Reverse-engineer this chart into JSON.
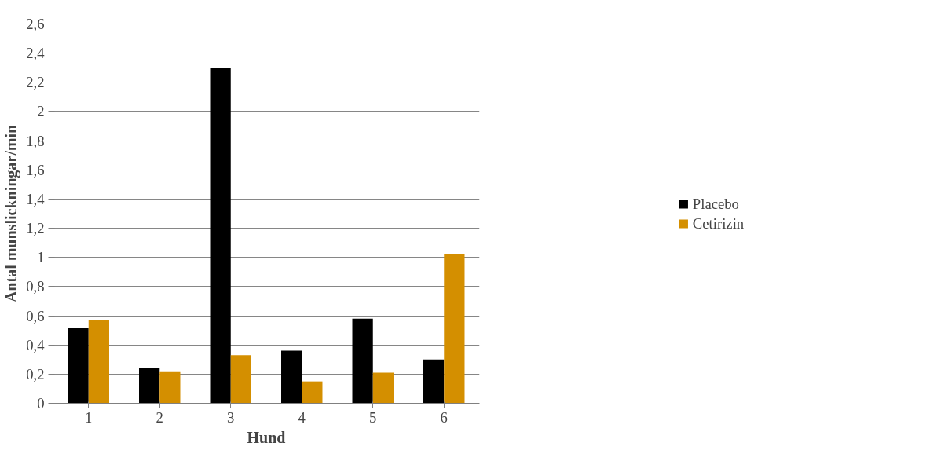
{
  "chart_data": {
    "type": "bar",
    "xlabel": "Hund",
    "ylabel": "Antal munslickningar/min",
    "categories": [
      "1",
      "2",
      "3",
      "4",
      "5",
      "6"
    ],
    "series": [
      {
        "name": "Placebo",
        "color": "#000000",
        "values": [
          0.52,
          0.24,
          2.3,
          0.36,
          0.58,
          0.3
        ]
      },
      {
        "name": "Cetirizin",
        "color": "#d48f00",
        "values": [
          0.57,
          0.22,
          0.33,
          0.15,
          0.21,
          1.02
        ]
      }
    ],
    "ylim": [
      0,
      2.6
    ],
    "yticks": [
      0,
      {
        "value": 0.2,
        "label": "0,2"
      },
      {
        "value": 0.4,
        "label": "0,4"
      },
      {
        "value": 0.6,
        "label": "0,6"
      },
      {
        "value": 0.8,
        "label": "0,8"
      },
      1,
      {
        "value": 1.2,
        "label": "1,2"
      },
      {
        "value": 1.4,
        "label": "1,4"
      },
      {
        "value": 1.6,
        "label": "1,6"
      },
      {
        "value": 1.8,
        "label": "1,8"
      },
      2,
      {
        "value": 2.2,
        "label": "2,2"
      },
      {
        "value": 2.4,
        "label": "2,4"
      },
      {
        "value": 2.6,
        "label": "2,6"
      }
    ],
    "grid": "y",
    "legend": "right"
  }
}
